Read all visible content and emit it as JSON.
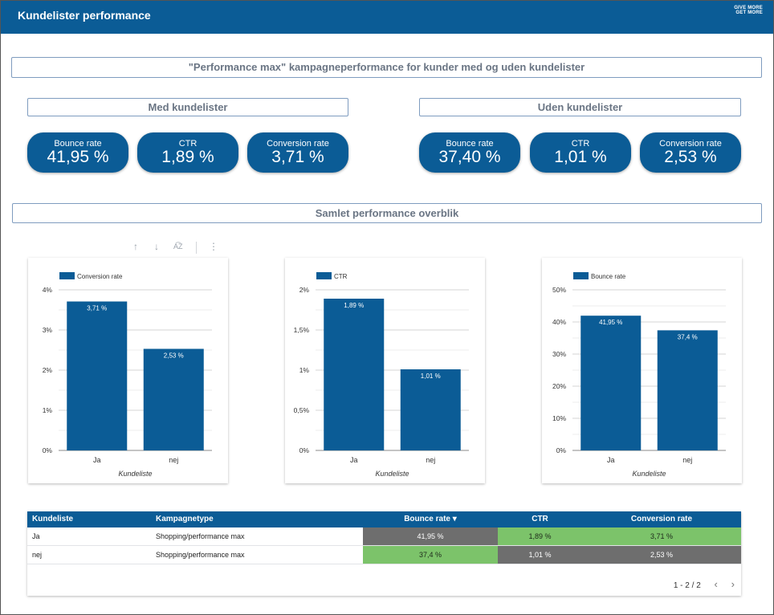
{
  "header": {
    "title": "Kundelister performance",
    "logo_line1": "GIVE MORE",
    "logo_line2": "GET MORE"
  },
  "sections": {
    "main": "\"Performance max\" kampagneperformance for kunder med og uden kundelister",
    "med": "Med kundelister",
    "uden": "Uden kundelister",
    "samlet": "Samlet performance overblik"
  },
  "kpis": {
    "med": [
      {
        "label": "Bounce rate",
        "value": "41,95 %"
      },
      {
        "label": "CTR",
        "value": "1,89 %"
      },
      {
        "label": "Conversion rate",
        "value": "3,71 %"
      }
    ],
    "uden": [
      {
        "label": "Bounce rate",
        "value": "37,40 %"
      },
      {
        "label": "CTR",
        "value": "1,01 %"
      },
      {
        "label": "Conversion rate",
        "value": "2,53 %"
      }
    ]
  },
  "toolbar": {
    "up": "↑",
    "down": "↓",
    "sort": "A͡Z",
    "more": "⋮"
  },
  "colors": {
    "primary": "#0b5c96",
    "green": "#7cc36a",
    "grey": "#6e6e6e"
  },
  "chart_data": [
    {
      "type": "bar",
      "series": [
        {
          "name": "Conversion rate",
          "values": [
            3.71,
            2.53
          ]
        }
      ],
      "categories": [
        "Ja",
        "nej"
      ],
      "xlabel": "Kundeliste",
      "ylim": [
        0,
        4
      ],
      "ticks": [
        0,
        1,
        2,
        3,
        4
      ],
      "tick_labels": [
        "0%",
        "1%",
        "2%",
        "3%",
        "4%"
      ],
      "data_labels": [
        "3,71 %",
        "2,53 %"
      ]
    },
    {
      "type": "bar",
      "series": [
        {
          "name": "CTR",
          "values": [
            1.89,
            1.01
          ]
        }
      ],
      "categories": [
        "Ja",
        "nej"
      ],
      "xlabel": "Kundeliste",
      "ylim": [
        0,
        2
      ],
      "ticks": [
        0,
        0.5,
        1,
        1.5,
        2
      ],
      "tick_labels": [
        "0%",
        "0,5%",
        "1%",
        "1,5%",
        "2%"
      ],
      "data_labels": [
        "1,89 %",
        "1,01 %"
      ]
    },
    {
      "type": "bar",
      "series": [
        {
          "name": "Bounce rate",
          "values": [
            41.95,
            37.4
          ]
        }
      ],
      "categories": [
        "Ja",
        "nej"
      ],
      "xlabel": "Kundeliste",
      "ylim": [
        0,
        50
      ],
      "ticks": [
        0,
        10,
        20,
        30,
        40,
        50
      ],
      "tick_labels": [
        "0%",
        "10%",
        "20%",
        "30%",
        "40%",
        "50%"
      ],
      "data_labels": [
        "41,95 %",
        "37,4 %"
      ]
    }
  ],
  "table": {
    "headers": [
      "Kundeliste",
      "Kampagnetype",
      "Bounce rate ▾",
      "CTR",
      "Conversion rate"
    ],
    "rows": [
      [
        "Ja",
        "Shopping/performance max",
        "41,95 %",
        "1,89 %",
        "3,71 %"
      ],
      [
        "nej",
        "Shopping/performance max",
        "37,4 %",
        "1,01 %",
        "2,53 %"
      ]
    ],
    "cell_colors": [
      [
        "",
        "",
        "grey",
        "green",
        "green"
      ],
      [
        "",
        "",
        "green",
        "grey",
        "grey"
      ]
    ],
    "pager": "1 - 2 / 2",
    "prev": "‹",
    "next": "›"
  }
}
